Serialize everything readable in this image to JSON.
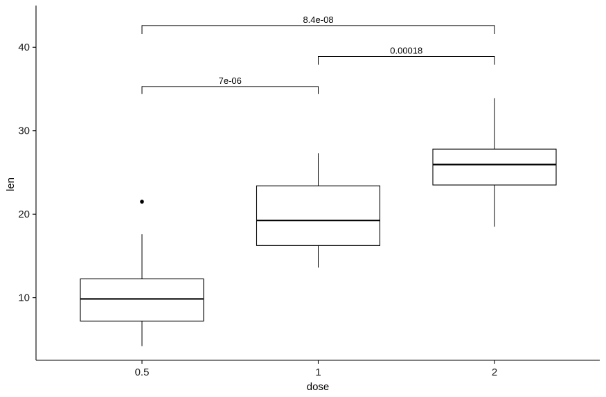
{
  "chart_data": {
    "type": "boxplot",
    "title": "",
    "xlabel": "dose",
    "ylabel": "len",
    "categories": [
      "0.5",
      "1",
      "2"
    ],
    "ylim": [
      2.5,
      45
    ],
    "y_ticks": [
      10,
      20,
      30,
      40
    ],
    "grid": false,
    "boxes": [
      {
        "category": "0.5",
        "whisker_low": 4.2,
        "q1": 7.2,
        "median": 9.85,
        "q3": 12.25,
        "whisker_high": 17.6,
        "outliers": [
          21.5
        ]
      },
      {
        "category": "1",
        "whisker_low": 13.6,
        "q1": 16.25,
        "median": 19.25,
        "q3": 23.4,
        "whisker_high": 27.3,
        "outliers": []
      },
      {
        "category": "2",
        "whisker_low": 18.5,
        "q1": 23.5,
        "median": 25.95,
        "q3": 27.8,
        "whisker_high": 33.9,
        "outliers": []
      }
    ],
    "comparisons": [
      {
        "group1": "0.5",
        "group2": "1",
        "p_label": "7e-06",
        "y": 35.3,
        "tip_y": 34.4
      },
      {
        "group1": "1",
        "group2": "2",
        "p_label": "0.00018",
        "y": 38.9,
        "tip_y": 37.9
      },
      {
        "group1": "0.5",
        "group2": "2",
        "p_label": "8.4e-08",
        "y": 42.6,
        "tip_y": 41.6
      }
    ],
    "colors": {
      "box_stroke": "#000000",
      "box_fill": "#ffffff",
      "axis": "#000000",
      "text": "#1a1a1a"
    }
  }
}
